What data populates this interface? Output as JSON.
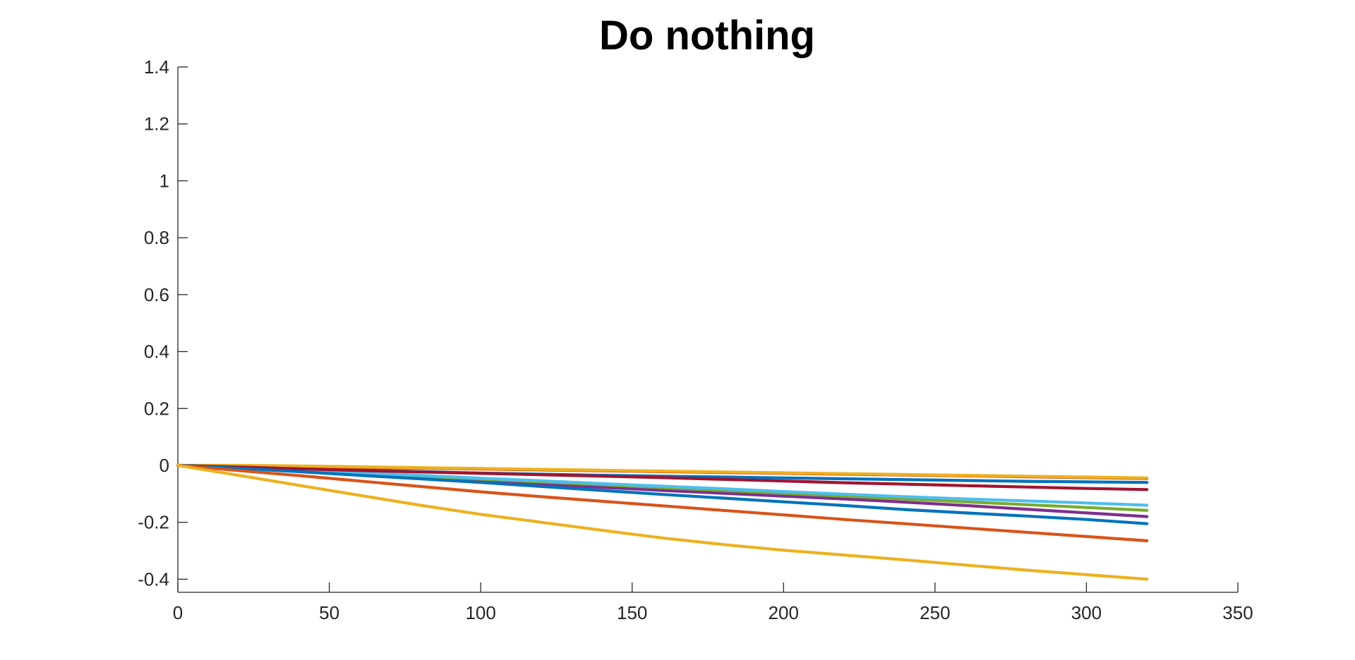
{
  "chart_data": {
    "type": "line",
    "title": "Do nothing",
    "xlabel": "",
    "ylabel": "",
    "xlim": [
      0,
      350
    ],
    "ylim": [
      -0.45,
      1.4
    ],
    "xticks": [
      0,
      50,
      100,
      150,
      200,
      250,
      300,
      350
    ],
    "yticks": [
      -0.4,
      -0.2,
      0,
      0.2,
      0.4,
      0.6,
      0.8,
      1,
      1.2,
      1.4
    ],
    "xtick_labels": [
      "0",
      "50",
      "100",
      "150",
      "200",
      "250",
      "300",
      "350"
    ],
    "ytick_labels": [
      "-0.4",
      "-0.2",
      "0",
      "0.2",
      "0.4",
      "0.6",
      "0.8",
      "1",
      "1.2",
      "1.4"
    ],
    "grid": false,
    "legend": "none",
    "series": [
      {
        "color": "#0072BD",
        "x": [
          0,
          20,
          40,
          60,
          80,
          100,
          120,
          140,
          160,
          180,
          200,
          220,
          240,
          260,
          280,
          300,
          320
        ],
        "y": [
          0,
          -0.004,
          -0.01,
          -0.016,
          -0.022,
          -0.027,
          -0.031,
          -0.035,
          -0.038,
          -0.041,
          -0.044,
          -0.047,
          -0.05,
          -0.053,
          -0.056,
          -0.058,
          -0.06
        ]
      },
      {
        "color": "#D95319",
        "x": [
          0,
          20,
          40,
          60,
          80,
          100,
          120,
          140,
          160,
          180,
          200,
          220,
          240,
          260,
          280,
          300,
          320
        ],
        "y": [
          0,
          -0.002,
          -0.004,
          -0.007,
          -0.01,
          -0.013,
          -0.016,
          -0.019,
          -0.022,
          -0.025,
          -0.028,
          -0.031,
          -0.034,
          -0.037,
          -0.04,
          -0.043,
          -0.046
        ]
      },
      {
        "color": "#EDB120",
        "x": [
          0,
          20,
          40,
          60,
          80,
          100,
          120,
          140,
          160,
          180,
          200,
          220,
          240,
          260,
          280,
          300,
          320
        ],
        "y": [
          0,
          0,
          -0.002,
          -0.005,
          -0.008,
          -0.011,
          -0.014,
          -0.017,
          -0.02,
          -0.023,
          -0.026,
          -0.029,
          -0.032,
          -0.035,
          -0.038,
          -0.041,
          -0.044
        ]
      },
      {
        "color": "#7E2F8E",
        "x": [
          0,
          20,
          40,
          60,
          80,
          100,
          120,
          140,
          160,
          180,
          200,
          220,
          240,
          260,
          280,
          300,
          320
        ],
        "y": [
          0,
          -0.01,
          -0.02,
          -0.033,
          -0.045,
          -0.056,
          -0.066,
          -0.077,
          -0.088,
          -0.098,
          -0.108,
          -0.118,
          -0.129,
          -0.141,
          -0.154,
          -0.167,
          -0.18
        ]
      },
      {
        "color": "#77AC30",
        "x": [
          0,
          20,
          40,
          60,
          80,
          100,
          120,
          140,
          160,
          180,
          200,
          220,
          240,
          260,
          280,
          300,
          320
        ],
        "y": [
          0,
          -0.008,
          -0.018,
          -0.028,
          -0.038,
          -0.048,
          -0.058,
          -0.068,
          -0.078,
          -0.088,
          -0.098,
          -0.108,
          -0.118,
          -0.128,
          -0.138,
          -0.148,
          -0.158
        ]
      },
      {
        "color": "#4DBEEE",
        "x": [
          0,
          20,
          40,
          60,
          80,
          100,
          120,
          140,
          160,
          180,
          200,
          220,
          240,
          260,
          280,
          300,
          320
        ],
        "y": [
          0,
          -0.008,
          -0.017,
          -0.026,
          -0.035,
          -0.045,
          -0.054,
          -0.064,
          -0.073,
          -0.082,
          -0.092,
          -0.101,
          -0.11,
          -0.118,
          -0.125,
          -0.132,
          -0.14
        ]
      },
      {
        "color": "#A2142F",
        "x": [
          0,
          20,
          40,
          60,
          80,
          100,
          120,
          140,
          160,
          180,
          200,
          220,
          240,
          260,
          280,
          300,
          320
        ],
        "y": [
          0,
          -0.006,
          -0.012,
          -0.018,
          -0.023,
          -0.028,
          -0.033,
          -0.038,
          -0.043,
          -0.049,
          -0.055,
          -0.061,
          -0.066,
          -0.071,
          -0.076,
          -0.081,
          -0.085
        ]
      },
      {
        "color": "#0072BD",
        "x": [
          0,
          20,
          40,
          60,
          80,
          100,
          120,
          140,
          160,
          180,
          200,
          220,
          240,
          260,
          280,
          300,
          320
        ],
        "y": [
          0,
          -0.01,
          -0.022,
          -0.035,
          -0.047,
          -0.06,
          -0.074,
          -0.088,
          -0.102,
          -0.115,
          -0.128,
          -0.141,
          -0.155,
          -0.167,
          -0.178,
          -0.19,
          -0.205
        ]
      },
      {
        "color": "#D95319",
        "x": [
          0,
          20,
          40,
          60,
          80,
          100,
          120,
          140,
          160,
          180,
          200,
          220,
          240,
          260,
          280,
          300,
          320
        ],
        "y": [
          0,
          -0.018,
          -0.036,
          -0.055,
          -0.074,
          -0.093,
          -0.11,
          -0.126,
          -0.142,
          -0.158,
          -0.174,
          -0.19,
          -0.205,
          -0.22,
          -0.235,
          -0.25,
          -0.265
        ]
      },
      {
        "color": "#EDB120",
        "x": [
          0,
          20,
          40,
          60,
          80,
          100,
          120,
          140,
          160,
          180,
          200,
          220,
          240,
          260,
          280,
          300,
          320
        ],
        "y": [
          0,
          -0.035,
          -0.07,
          -0.105,
          -0.14,
          -0.172,
          -0.2,
          -0.228,
          -0.255,
          -0.278,
          -0.298,
          -0.315,
          -0.332,
          -0.35,
          -0.368,
          -0.384,
          -0.4
        ]
      }
    ]
  }
}
